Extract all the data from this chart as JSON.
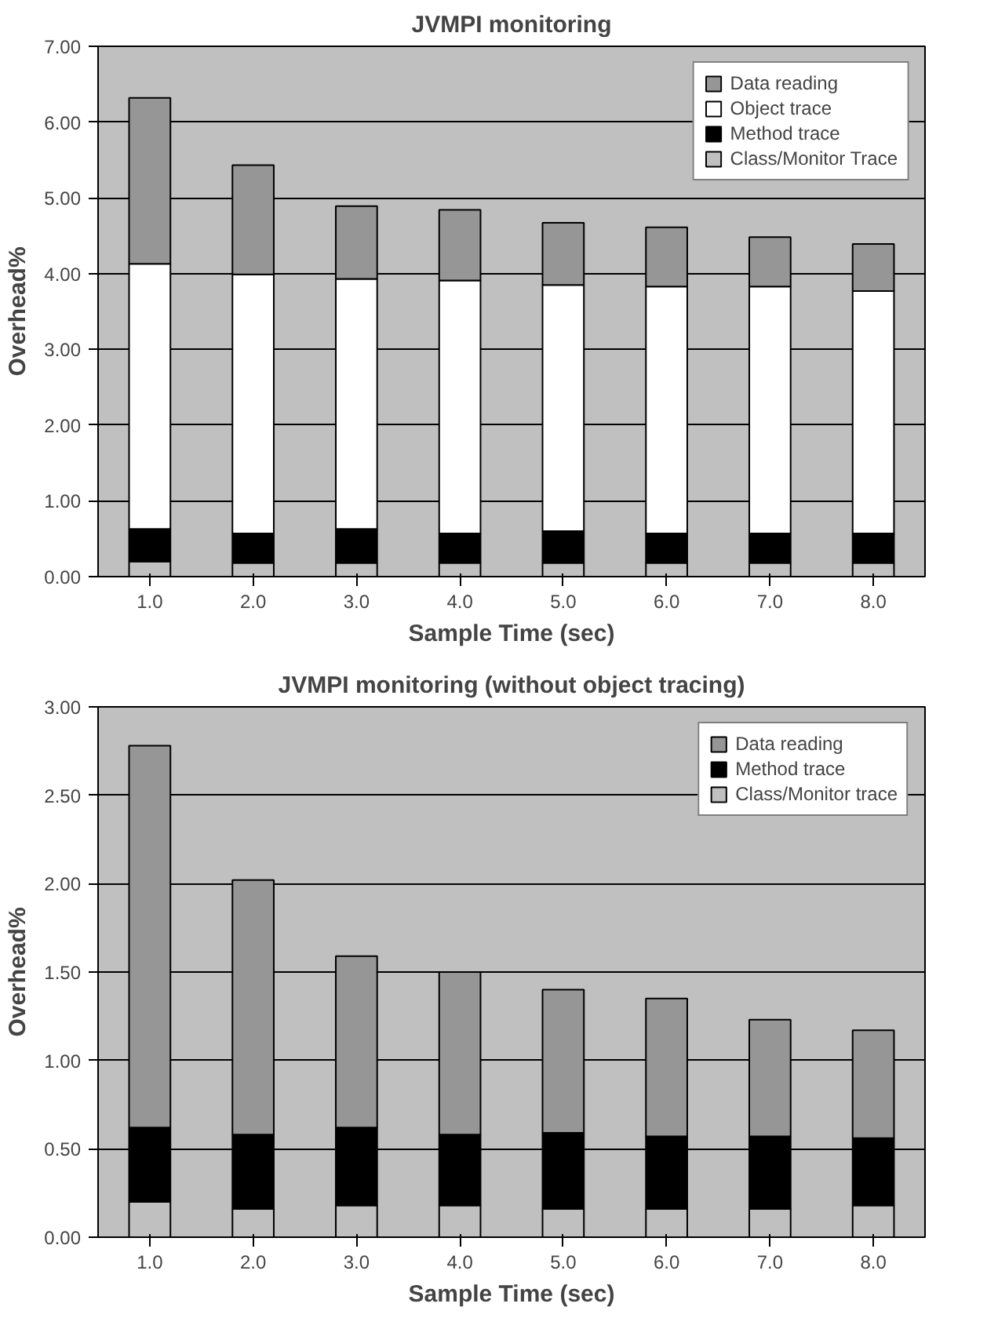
{
  "chart_data": [
    {
      "type": "bar",
      "title": "JVMPI monitoring",
      "xlabel": "Sample Time (sec)",
      "ylabel": "Overhead%",
      "stacked": true,
      "grid": "y",
      "legend": "top right",
      "categories": [
        "1.0",
        "2.0",
        "3.0",
        "4.0",
        "5.0",
        "6.0",
        "7.0",
        "8.0"
      ],
      "ylim": [
        0,
        7
      ],
      "yticks": [
        {
          "value": 0,
          "label": "0.00"
        },
        {
          "value": 1,
          "label": "1.00"
        },
        {
          "value": 2,
          "label": "2.00"
        },
        {
          "value": 3,
          "label": "3.00"
        },
        {
          "value": 4,
          "label": "4.00"
        },
        {
          "value": 5,
          "label": "5.00"
        },
        {
          "value": 6,
          "label": "6.00"
        },
        {
          "value": 7,
          "label": "7.00"
        }
      ],
      "series": [
        {
          "name": "Class/Monitor Trace",
          "color": "#c0c0c0",
          "values": [
            0.2,
            0.18,
            0.18,
            0.18,
            0.18,
            0.18,
            0.18,
            0.18
          ]
        },
        {
          "name": "Method trace",
          "color": "#000000",
          "values": [
            0.43,
            0.39,
            0.45,
            0.39,
            0.42,
            0.39,
            0.39,
            0.39
          ]
        },
        {
          "name": "Object trace",
          "color": "#ffffff",
          "values": [
            3.5,
            3.42,
            3.3,
            3.34,
            3.25,
            3.26,
            3.26,
            3.2
          ]
        },
        {
          "name": "Data reading",
          "color": "#969696",
          "values": [
            2.19,
            1.44,
            0.96,
            0.93,
            0.82,
            0.78,
            0.65,
            0.62
          ]
        }
      ]
    },
    {
      "type": "bar",
      "title": "JVMPI monitoring (without object tracing)",
      "xlabel": "Sample Time (sec)",
      "ylabel": "Overhead%",
      "stacked": true,
      "grid": "y",
      "legend": "top right",
      "categories": [
        "1.0",
        "2.0",
        "3.0",
        "4.0",
        "5.0",
        "6.0",
        "7.0",
        "8.0"
      ],
      "ylim": [
        0,
        3
      ],
      "yticks": [
        {
          "value": 0,
          "label": "0.00"
        },
        {
          "value": 0.5,
          "label": "0.50"
        },
        {
          "value": 1,
          "label": "1.00"
        },
        {
          "value": 1.5,
          "label": "1.50"
        },
        {
          "value": 2,
          "label": "2.00"
        },
        {
          "value": 2.5,
          "label": "2.50"
        },
        {
          "value": 3,
          "label": "3.00"
        }
      ],
      "series": [
        {
          "name": "Class/Monitor trace",
          "color": "#c0c0c0",
          "values": [
            0.2,
            0.16,
            0.18,
            0.18,
            0.16,
            0.16,
            0.16,
            0.18
          ]
        },
        {
          "name": "Method trace",
          "color": "#000000",
          "values": [
            0.42,
            0.42,
            0.44,
            0.4,
            0.43,
            0.41,
            0.41,
            0.38
          ]
        },
        {
          "name": "Data reading",
          "color": "#969696",
          "values": [
            2.16,
            1.44,
            0.97,
            0.92,
            0.81,
            0.78,
            0.66,
            0.61
          ]
        }
      ]
    }
  ]
}
